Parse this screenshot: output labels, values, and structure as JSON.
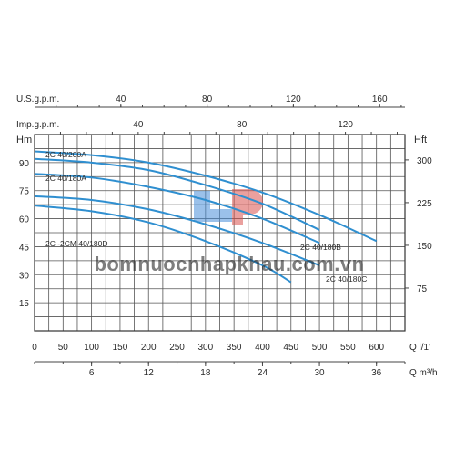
{
  "chart_data": {
    "type": "line",
    "axes": {
      "us_gpm": {
        "label": "U.S.g.p.m.",
        "ticks": [
          40,
          80,
          120,
          160
        ]
      },
      "imp_gpm": {
        "label": "Imp.g.p.m.",
        "ticks": [
          40,
          80,
          120
        ]
      },
      "head_m": {
        "label": "Hm",
        "ticks": [
          15,
          30,
          45,
          60,
          75,
          90
        ],
        "range": [
          0,
          105
        ]
      },
      "head_ft": {
        "label": "Hft",
        "ticks": [
          75,
          150,
          225,
          300
        ]
      },
      "q_lmin": {
        "label": "Q l/1'",
        "ticks": [
          0,
          50,
          100,
          150,
          200,
          250,
          300,
          350,
          400,
          450,
          500,
          550,
          600
        ],
        "range": [
          0,
          650
        ]
      },
      "q_m3h": {
        "label": "Q m³/h",
        "ticks": [
          6,
          12,
          18,
          24,
          30,
          36
        ]
      }
    },
    "series": [
      {
        "name": "2C 40/200A",
        "x": [
          0,
          100,
          200,
          300,
          400,
          500,
          600
        ],
        "y": [
          96,
          94,
          90,
          83,
          74,
          62,
          48
        ]
      },
      {
        "name": "2C 40/180A",
        "x": [
          0,
          100,
          200,
          300,
          400,
          500
        ],
        "y": [
          92,
          90,
          86,
          78,
          68,
          54
        ]
      },
      {
        "name": "2C 40/180B",
        "x": [
          0,
          100,
          200,
          300,
          400,
          500
        ],
        "y": [
          84,
          82,
          77,
          70,
          60,
          47
        ]
      },
      {
        "name": "2C 40/180C",
        "x": [
          0,
          100,
          200,
          300,
          400,
          500
        ],
        "y": [
          72,
          70,
          65,
          57,
          47,
          35
        ]
      },
      {
        "name": "2C -2CM 40/180D",
        "x": [
          0,
          100,
          200,
          300,
          400,
          450
        ],
        "y": [
          67,
          64,
          58,
          48,
          35,
          26
        ]
      }
    ],
    "watermark_text": "bomnuocnhapkhau.com.vn",
    "colors": {
      "curve": "#2f8fd0",
      "grid": "#555555",
      "watermark": "#3b8fd4",
      "logo_blue": "#4a90d9",
      "logo_red": "#d9534f"
    }
  }
}
